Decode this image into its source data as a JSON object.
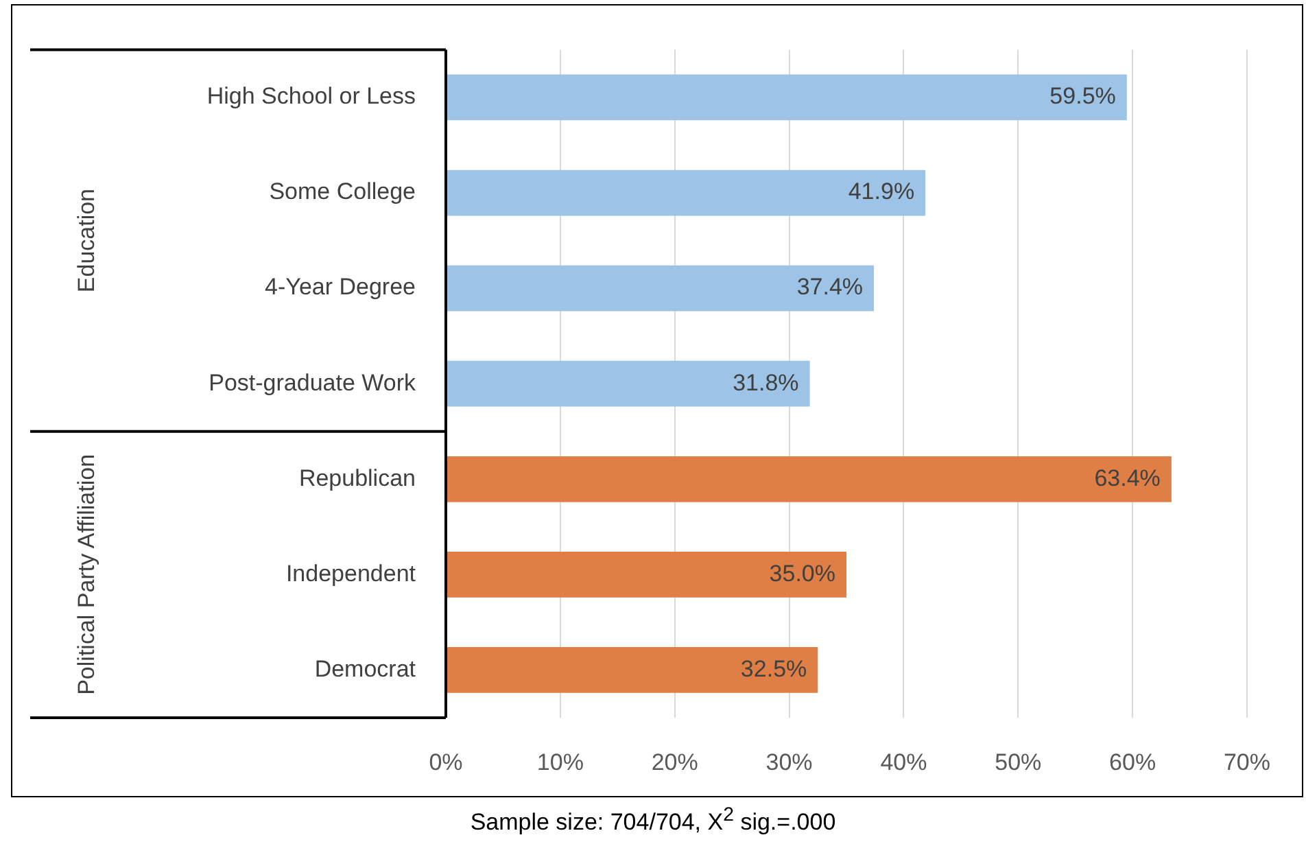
{
  "chart_data": {
    "type": "bar",
    "orientation": "horizontal",
    "categories": [
      "High School or Less",
      "Some College",
      "4-Year Degree",
      "Post-graduate Work",
      "Republican",
      "Independent",
      "Democrat"
    ],
    "values": [
      59.5,
      41.9,
      37.4,
      31.8,
      63.4,
      35.0,
      32.5
    ],
    "colors": [
      "#9dc3e6",
      "#9dc3e6",
      "#9dc3e6",
      "#9dc3e6",
      "#e07f45",
      "#e07f45",
      "#e07f45"
    ],
    "value_labels": [
      "59.5%",
      "41.9%",
      "37.4%",
      "31.8%",
      "63.4%",
      "35.0%",
      "32.5%"
    ],
    "xlim": [
      0,
      70
    ],
    "xticks": [
      {
        "value": 0,
        "label": "0%"
      },
      {
        "value": 10,
        "label": "10%"
      },
      {
        "value": 20,
        "label": "20%"
      },
      {
        "value": 30,
        "label": "30%"
      },
      {
        "value": 40,
        "label": "40%"
      },
      {
        "value": 50,
        "label": "50%"
      },
      {
        "value": 60,
        "label": "60%"
      },
      {
        "value": 70,
        "label": "70%"
      }
    ],
    "grid": "x",
    "legend": false,
    "annotations": [
      "Education",
      "Political Party Affiliation",
      "Sample size: 704/704, X$^{2}$ sig.=.000"
    ]
  }
}
